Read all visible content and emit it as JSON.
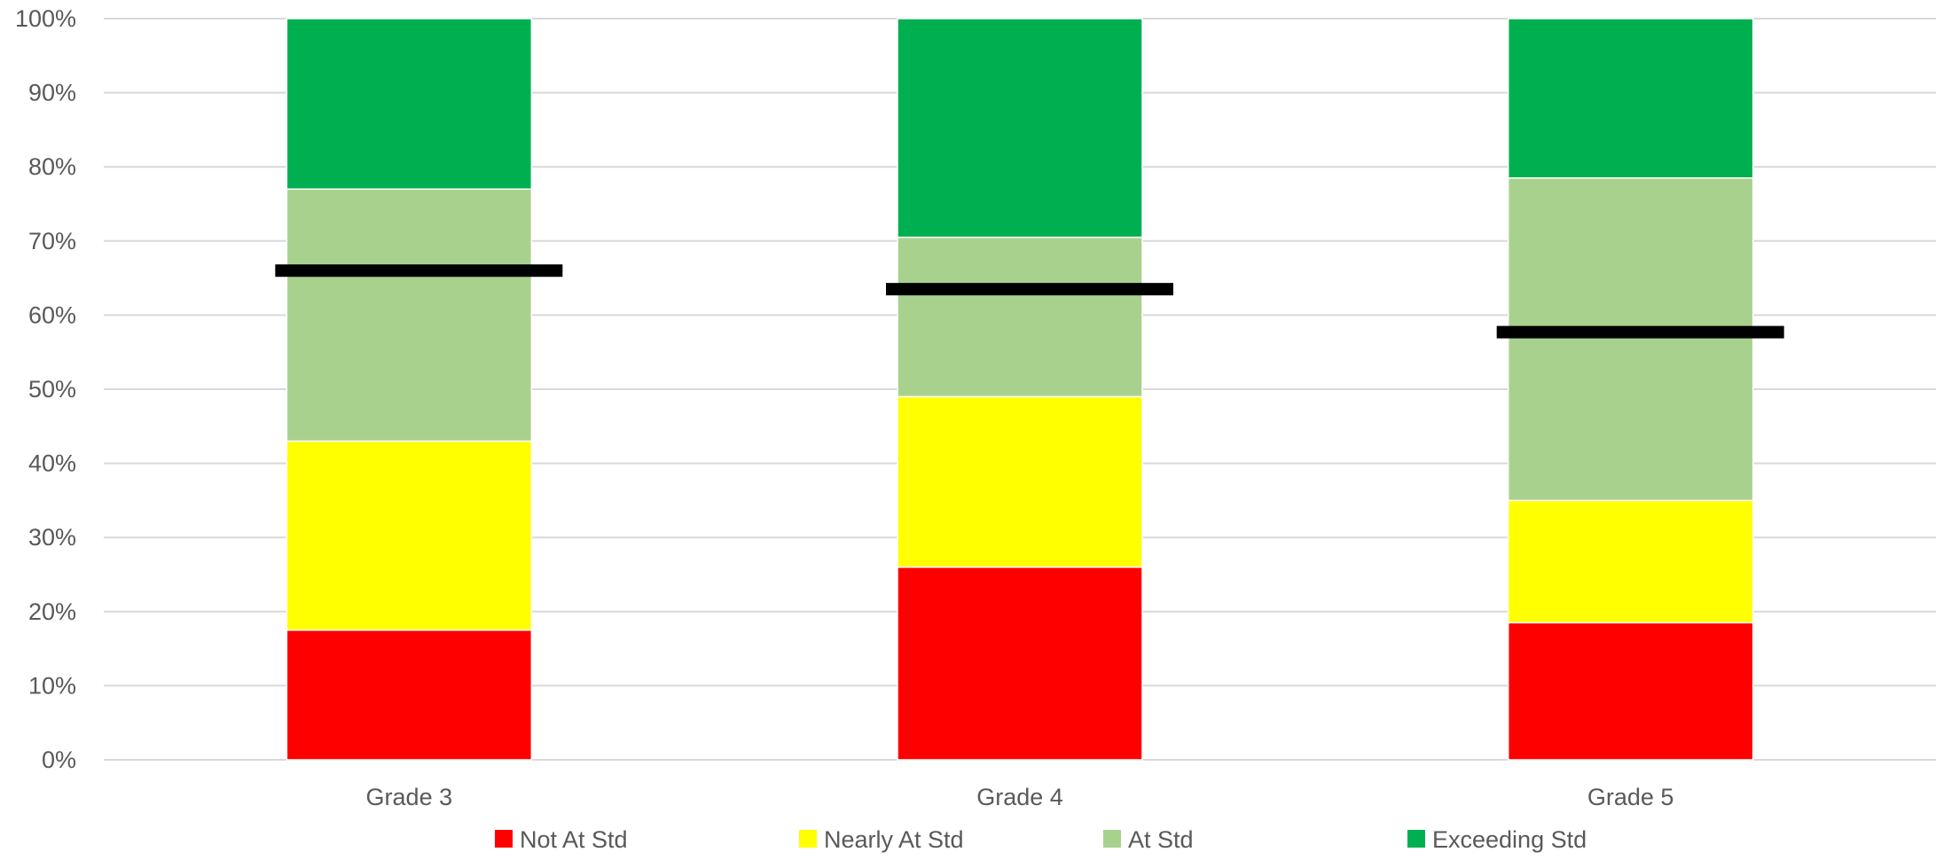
{
  "chart_data": {
    "type": "bar",
    "stacked": true,
    "categories": [
      "Grade 3",
      "Grade 4",
      "Grade 5"
    ],
    "series": [
      {
        "name": "Not At Std",
        "color": "#FF0000",
        "values": [
          17.5,
          26,
          18.5
        ]
      },
      {
        "name": "Nearly At Std",
        "color": "#FFFF00",
        "values": [
          25.5,
          23,
          16.5
        ]
      },
      {
        "name": "At Std",
        "color": "#A9D18E",
        "values": [
          34,
          21.5,
          43.5
        ]
      },
      {
        "name": "Exceeding Std",
        "color": "#00B050",
        "values": [
          23,
          29.5,
          21.5
        ]
      }
    ],
    "markers": {
      "color": "#000000",
      "values": [
        66,
        63.5,
        57.7
      ]
    },
    "yticks": [
      "0%",
      "10%",
      "20%",
      "30%",
      "40%",
      "50%",
      "60%",
      "70%",
      "80%",
      "90%",
      "100%"
    ],
    "ylim": [
      0,
      100
    ],
    "grid": true,
    "legend_position": "bottom"
  }
}
